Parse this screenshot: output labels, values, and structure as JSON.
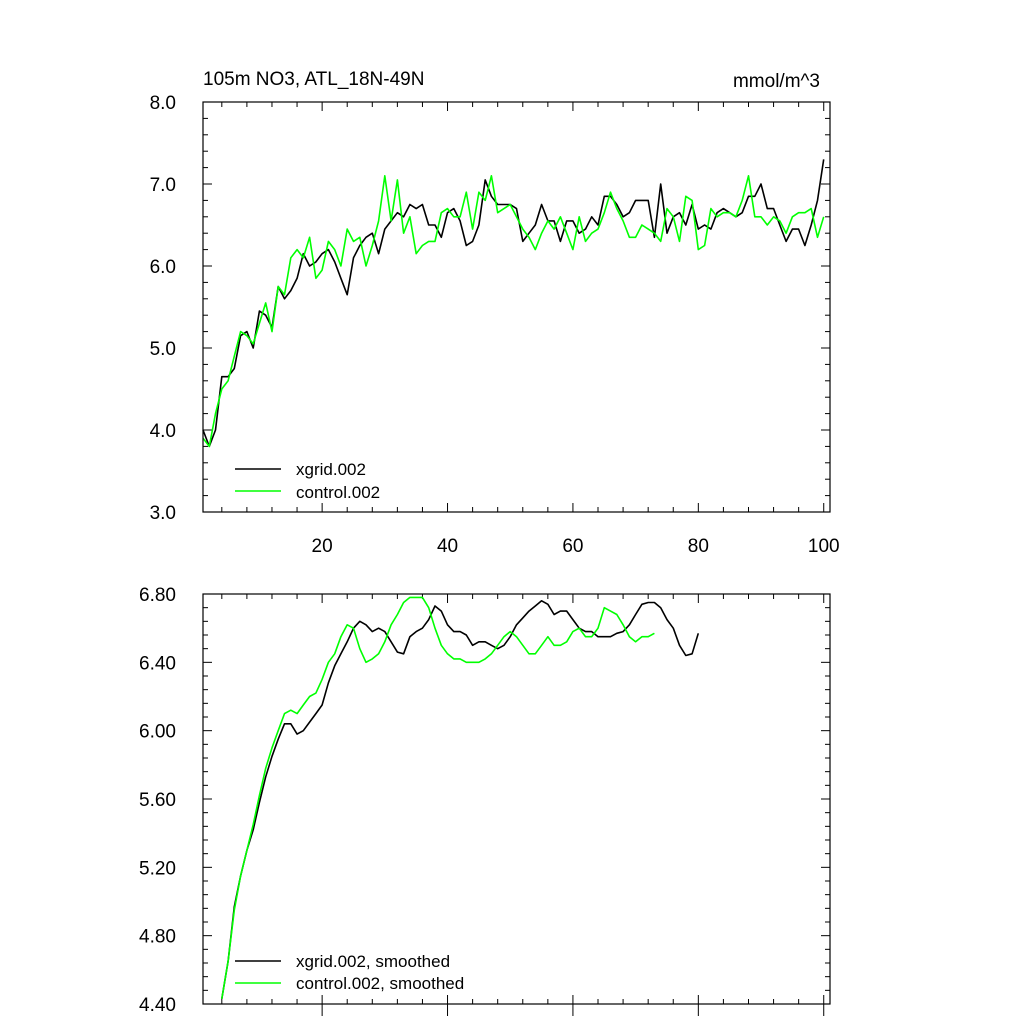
{
  "chart_data": [
    {
      "type": "line",
      "title": "105m NO3, ATL_18N-49N",
      "units": "mmol/m^3",
      "xlim": [
        1,
        101
      ],
      "ylim": [
        3.0,
        8.0
      ],
      "x_tick_values": [
        20,
        40,
        60,
        80,
        100
      ],
      "x_tick_labels": [
        "20",
        "40",
        "60",
        "80",
        "100"
      ],
      "y_tick_values": [
        3.0,
        4.0,
        5.0,
        6.0,
        7.0,
        8.0
      ],
      "y_tick_labels": [
        "3.0",
        "4.0",
        "5.0",
        "6.0",
        "7.0",
        "8.0"
      ],
      "legend_position": "bottom-left",
      "x_start": 1,
      "series": [
        {
          "name": "xgrid.002",
          "color": "#000000",
          "values": [
            4.0,
            3.8,
            4.0,
            4.65,
            4.65,
            4.75,
            5.15,
            5.2,
            5.0,
            5.45,
            5.4,
            5.25,
            5.75,
            5.6,
            5.7,
            5.85,
            6.15,
            6.0,
            6.05,
            6.15,
            6.2,
            6.05,
            5.85,
            5.65,
            6.1,
            6.25,
            6.35,
            6.4,
            6.15,
            6.45,
            6.55,
            6.65,
            6.6,
            6.75,
            6.7,
            6.75,
            6.5,
            6.5,
            6.35,
            6.65,
            6.7,
            6.55,
            6.25,
            6.3,
            6.5,
            7.05,
            6.85,
            6.75,
            6.75,
            6.75,
            6.7,
            6.3,
            6.4,
            6.5,
            6.75,
            6.55,
            6.55,
            6.3,
            6.55,
            6.55,
            6.4,
            6.45,
            6.6,
            6.5,
            6.85,
            6.85,
            6.75,
            6.6,
            6.65,
            6.8,
            6.8,
            6.8,
            6.35,
            7.0,
            6.4,
            6.6,
            6.65,
            6.5,
            6.75,
            6.45,
            6.5,
            6.45,
            6.65,
            6.7,
            6.65,
            6.6,
            6.65,
            6.85,
            6.85,
            7.0,
            6.7,
            6.7,
            6.5,
            6.3,
            6.45,
            6.45,
            6.25,
            6.5,
            6.8,
            7.3
          ]
        },
        {
          "name": "control.002",
          "color": "#00ff00",
          "values": [
            3.9,
            3.8,
            4.2,
            4.5,
            4.6,
            4.9,
            5.2,
            5.15,
            5.05,
            5.3,
            5.55,
            5.2,
            5.75,
            5.65,
            6.1,
            6.2,
            6.1,
            6.35,
            5.85,
            5.95,
            6.3,
            6.2,
            6.0,
            6.45,
            6.3,
            6.35,
            6.0,
            6.25,
            6.55,
            7.1,
            6.55,
            7.05,
            6.4,
            6.6,
            6.15,
            6.25,
            6.3,
            6.3,
            6.65,
            6.7,
            6.6,
            6.6,
            6.9,
            6.45,
            6.9,
            6.8,
            7.1,
            6.65,
            6.7,
            6.75,
            6.6,
            6.45,
            6.35,
            6.2,
            6.4,
            6.55,
            6.45,
            6.6,
            6.4,
            6.2,
            6.6,
            6.3,
            6.4,
            6.45,
            6.65,
            6.9,
            6.7,
            6.55,
            6.35,
            6.35,
            6.5,
            6.45,
            6.4,
            6.3,
            6.7,
            6.6,
            6.3,
            6.85,
            6.8,
            6.2,
            6.25,
            6.7,
            6.6,
            6.65,
            6.65,
            6.6,
            6.8,
            7.1,
            6.6,
            6.6,
            6.5,
            6.6,
            6.55,
            6.4,
            6.6,
            6.65,
            6.65,
            6.7,
            6.35,
            6.6
          ]
        }
      ]
    },
    {
      "type": "line",
      "title": "",
      "xlim": [
        1,
        101
      ],
      "ylim": [
        4.4,
        6.8
      ],
      "x_tick_values": [
        20,
        40,
        60,
        80,
        100
      ],
      "x_tick_labels": [],
      "y_tick_values": [
        4.4,
        4.8,
        5.2,
        5.6,
        6.0,
        6.4,
        6.8
      ],
      "y_tick_labels": [
        "4.40",
        "4.80",
        "5.20",
        "5.60",
        "6.00",
        "6.40",
        "6.80"
      ],
      "legend_position": "bottom-left",
      "x_start": 4,
      "series": [
        {
          "name": "xgrid.002, smoothed",
          "color": "#000000",
          "values": [
            4.43,
            4.65,
            4.97,
            5.15,
            5.3,
            5.42,
            5.58,
            5.73,
            5.85,
            5.95,
            6.04,
            6.04,
            5.98,
            6.0,
            6.05,
            6.1,
            6.15,
            6.28,
            6.38,
            6.45,
            6.52,
            6.6,
            6.64,
            6.62,
            6.58,
            6.6,
            6.58,
            6.52,
            6.46,
            6.45,
            6.55,
            6.58,
            6.6,
            6.65,
            6.73,
            6.7,
            6.62,
            6.58,
            6.58,
            6.56,
            6.5,
            6.52,
            6.52,
            6.5,
            6.48,
            6.5,
            6.55,
            6.62,
            6.66,
            6.7,
            6.73,
            6.76,
            6.74,
            6.68,
            6.7,
            6.7,
            6.65,
            6.6,
            6.58,
            6.58,
            6.55,
            6.55,
            6.55,
            6.57,
            6.58,
            6.62,
            6.68,
            6.74,
            6.75,
            6.75,
            6.72,
            6.65,
            6.6,
            6.5,
            6.44,
            6.45,
            6.57
          ]
        },
        {
          "name": "control.002, smoothed",
          "color": "#00ff00",
          "values": [
            4.43,
            4.65,
            4.95,
            5.15,
            5.3,
            5.45,
            5.62,
            5.78,
            5.9,
            6.0,
            6.1,
            6.12,
            6.1,
            6.15,
            6.2,
            6.22,
            6.3,
            6.4,
            6.45,
            6.55,
            6.62,
            6.6,
            6.48,
            6.4,
            6.42,
            6.45,
            6.52,
            6.62,
            6.68,
            6.75,
            6.78,
            6.78,
            6.78,
            6.72,
            6.6,
            6.5,
            6.45,
            6.42,
            6.42,
            6.4,
            6.4,
            6.4,
            6.42,
            6.45,
            6.5,
            6.55,
            6.58,
            6.55,
            6.5,
            6.45,
            6.45,
            6.5,
            6.55,
            6.5,
            6.5,
            6.52,
            6.58,
            6.6,
            6.55,
            6.55,
            6.6,
            6.72,
            6.7,
            6.68,
            6.62,
            6.55,
            6.52,
            6.55,
            6.55,
            6.57
          ]
        }
      ]
    }
  ]
}
